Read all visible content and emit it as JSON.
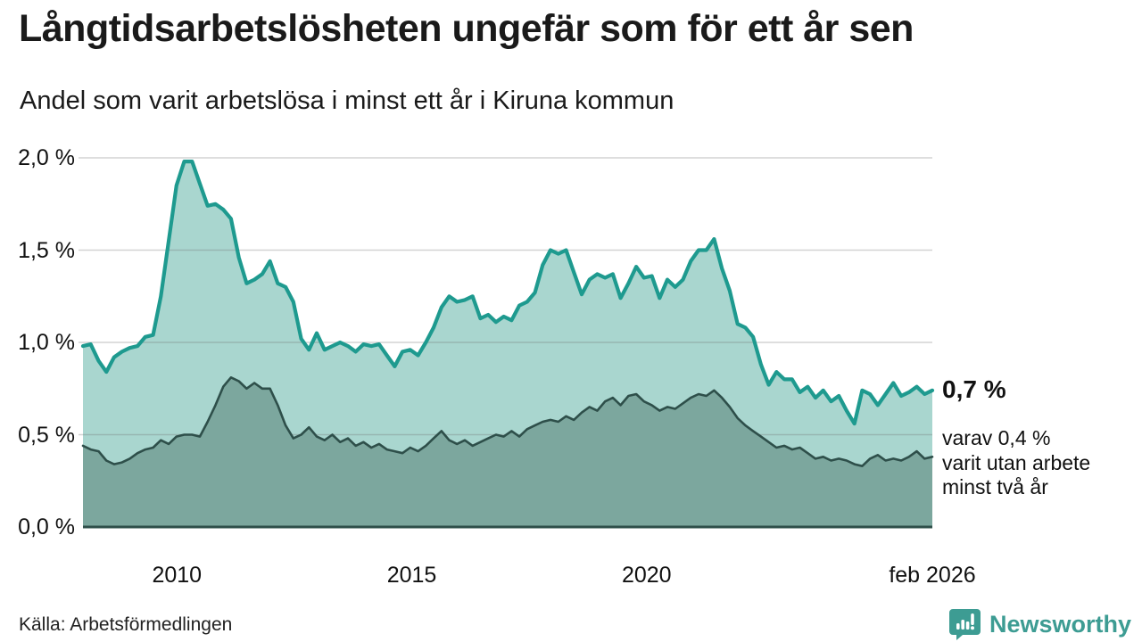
{
  "header": {
    "title": "Långtidsarbetslösheten ungefär som för ett år sen",
    "subtitle": "Andel som varit arbetslösa i minst ett år i Kiruna kommun"
  },
  "annotation": {
    "latest_total": "0,7 %",
    "lines": [
      "varav 0,4 %",
      "varit utan arbete",
      "minst två år"
    ]
  },
  "footer": {
    "source": "Källa: Arbetsförmedlingen",
    "brand": "Newsworthy"
  },
  "colors": {
    "total_line": "#1e9a8f",
    "total_fill": "#a9d6cf",
    "subset_line": "#2e4f4a",
    "subset_fill": "#7ca79e",
    "baseline": "#2e4f4a",
    "grid": "rgba(110,110,110,0.30)",
    "brand_teal": "#3d9c93",
    "text": "#1a1a1a"
  },
  "chart_data": {
    "type": "area",
    "title": "Långtidsarbetslösheten ungefär som för ett år sen",
    "subtitle": "Andel som varit arbetslösa i minst ett år i Kiruna kommun",
    "unit": "%",
    "grid": true,
    "x_range": [
      2008.0,
      2026.083
    ],
    "ylim": [
      0,
      2.05
    ],
    "y_ticks": [
      {
        "label": "0,0 %",
        "value": 0.0
      },
      {
        "label": "0,5 %",
        "value": 0.5
      },
      {
        "label": "1,0 %",
        "value": 1.0
      },
      {
        "label": "1,5 %",
        "value": 1.5
      },
      {
        "label": "2,0 %",
        "value": 2.0
      }
    ],
    "x_ticks": [
      {
        "label": "2010",
        "x": 2010
      },
      {
        "label": "2015",
        "x": 2015
      },
      {
        "label": "2020",
        "x": 2020
      },
      {
        "label": "feb 2026",
        "x": 2026.083
      }
    ],
    "series": [
      {
        "name": "Arbetslösa minst ett år",
        "latest_label": "0,7 %",
        "latest_value": 0.74,
        "line_color": "#1e9a8f",
        "fill_color": "#a9d6cf",
        "values": [
          0.98,
          0.99,
          0.9,
          0.84,
          0.92,
          0.95,
          0.97,
          0.98,
          1.03,
          1.04,
          1.25,
          1.55,
          1.85,
          1.98,
          1.98,
          1.86,
          1.74,
          1.75,
          1.72,
          1.67,
          1.46,
          1.32,
          1.34,
          1.37,
          1.44,
          1.32,
          1.3,
          1.22,
          1.02,
          0.96,
          1.05,
          0.96,
          0.98,
          1.0,
          0.98,
          0.95,
          0.99,
          0.98,
          0.99,
          0.93,
          0.87,
          0.95,
          0.96,
          0.93,
          1.0,
          1.08,
          1.19,
          1.25,
          1.22,
          1.23,
          1.25,
          1.13,
          1.15,
          1.11,
          1.14,
          1.12,
          1.2,
          1.22,
          1.27,
          1.42,
          1.5,
          1.48,
          1.5,
          1.38,
          1.26,
          1.34,
          1.37,
          1.35,
          1.37,
          1.24,
          1.32,
          1.41,
          1.35,
          1.36,
          1.24,
          1.34,
          1.3,
          1.34,
          1.44,
          1.5,
          1.5,
          1.56,
          1.4,
          1.28,
          1.1,
          1.08,
          1.03,
          0.88,
          0.77,
          0.84,
          0.8,
          0.8,
          0.73,
          0.76,
          0.7,
          0.74,
          0.68,
          0.71,
          0.63,
          0.56,
          0.74,
          0.72,
          0.66,
          0.72,
          0.78,
          0.71,
          0.73,
          0.76,
          0.72,
          0.74
        ]
      },
      {
        "name": "varav arbetslösa minst två år",
        "latest_label": "0,4 %",
        "latest_value": 0.38,
        "line_color": "#2e4f4a",
        "fill_color": "#7ca79e",
        "values": [
          0.44,
          0.42,
          0.41,
          0.36,
          0.34,
          0.35,
          0.37,
          0.4,
          0.42,
          0.43,
          0.47,
          0.45,
          0.49,
          0.5,
          0.5,
          0.49,
          0.57,
          0.66,
          0.76,
          0.81,
          0.79,
          0.75,
          0.78,
          0.75,
          0.75,
          0.66,
          0.55,
          0.48,
          0.5,
          0.54,
          0.49,
          0.47,
          0.5,
          0.46,
          0.48,
          0.44,
          0.46,
          0.43,
          0.45,
          0.42,
          0.41,
          0.4,
          0.43,
          0.41,
          0.44,
          0.48,
          0.52,
          0.47,
          0.45,
          0.47,
          0.44,
          0.46,
          0.48,
          0.5,
          0.49,
          0.52,
          0.49,
          0.53,
          0.55,
          0.57,
          0.58,
          0.57,
          0.6,
          0.58,
          0.62,
          0.65,
          0.63,
          0.68,
          0.7,
          0.66,
          0.71,
          0.72,
          0.68,
          0.66,
          0.63,
          0.65,
          0.64,
          0.67,
          0.7,
          0.72,
          0.71,
          0.74,
          0.7,
          0.65,
          0.59,
          0.55,
          0.52,
          0.49,
          0.46,
          0.43,
          0.44,
          0.42,
          0.43,
          0.4,
          0.37,
          0.38,
          0.36,
          0.37,
          0.36,
          0.34,
          0.33,
          0.37,
          0.39,
          0.36,
          0.37,
          0.36,
          0.38,
          0.41,
          0.37,
          0.38
        ]
      }
    ]
  }
}
